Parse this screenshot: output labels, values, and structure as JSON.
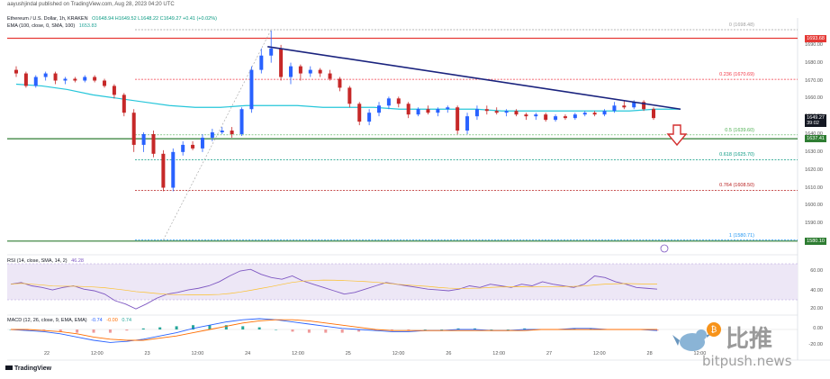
{
  "header": {
    "publisher": "aayushjindal published on TradingView.com, Aug 28, 2023 04:20 UTC"
  },
  "legend": {
    "symbol": "Ethereum / U.S. Dollar, 1h, KRAKEN",
    "ohlc": "O1648.94 H1649.52 L1648.22 C1649.27 +0.41 (+0.02%)",
    "ema_label": "EMA (100, close, 0, SMA, 100)",
    "ema_value": "1653.83"
  },
  "fib_levels": [
    {
      "ratio": "0",
      "price": 1698.48,
      "label": "0 (1698.48)",
      "color": "#9e9e9e"
    },
    {
      "ratio": "0.236",
      "price": 1670.69,
      "label": "0.236 (1670.69)",
      "color": "#f23645"
    },
    {
      "ratio": "0.5",
      "price": 1639.6,
      "label": "0.5 (1639.60)",
      "color": "#4caf50"
    },
    {
      "ratio": "0.618",
      "price": 1625.7,
      "label": "0.618 (1625.70)",
      "color": "#089981"
    },
    {
      "ratio": "0.764",
      "price": 1608.5,
      "label": "0.764 (1608.50)",
      "color": "#b71c1c"
    },
    {
      "ratio": "1",
      "price": 1580.71,
      "label": "1 (1580.71)",
      "color": "#2196f3"
    }
  ],
  "price_tags": [
    {
      "label": "1693.68",
      "price": 1693.68,
      "color": "#e53935"
    },
    {
      "label": "1649.27",
      "price": 1649.27,
      "color": "#131722"
    },
    {
      "label": "1637.41",
      "price": 1637.41,
      "color": "#2e7d32"
    },
    {
      "label": "1580.10",
      "price": 1580.1,
      "color": "#2e7d32"
    }
  ],
  "price_tag_sub": "39:02",
  "price_axis": [
    "1690.00",
    "1680.00",
    "1670.00",
    "1660.00",
    "1650.00",
    "1640.00",
    "1630.00",
    "1620.00",
    "1610.00",
    "1600.00",
    "1590.00"
  ],
  "time_axis": [
    "22",
    "12:00",
    "23",
    "12:00",
    "24",
    "12:00",
    "25",
    "12:00",
    "26",
    "12:00",
    "27",
    "12:00",
    "28",
    "12:00"
  ],
  "rsi": {
    "label": "RSI (14, close, SMA, 14, 2)",
    "value": "46.28",
    "axis": [
      "60.00",
      "40.00"
    ]
  },
  "macd": {
    "label": "MACD (12, 26, close, 9, EMA, EMA)",
    "v1": "-0.74",
    "v2": "-0.00",
    "v3": "0.74",
    "axis": [
      "20.00",
      "0.00",
      "-20.00"
    ]
  },
  "footer": {
    "brand": "TradingView"
  },
  "watermark": {
    "cn": "比推",
    "en": "bitpush.news"
  },
  "chart_data": {
    "type": "candlestick",
    "ylim": [
      1580,
      1700
    ],
    "candles": [
      [
        1676,
        1678,
        1672,
        1674
      ],
      [
        1674,
        1675,
        1666,
        1667
      ],
      [
        1667,
        1673,
        1666,
        1672
      ],
      [
        1672,
        1675,
        1670,
        1674
      ],
      [
        1674,
        1675,
        1668,
        1670
      ],
      [
        1670,
        1672,
        1668,
        1671
      ],
      [
        1671,
        1672,
        1669,
        1670
      ],
      [
        1670,
        1673,
        1669,
        1672
      ],
      [
        1672,
        1673,
        1669,
        1670
      ],
      [
        1670,
        1671,
        1666,
        1667
      ],
      [
        1667,
        1668,
        1660,
        1662
      ],
      [
        1662,
        1663,
        1650,
        1652
      ],
      [
        1652,
        1654,
        1630,
        1634
      ],
      [
        1634,
        1641,
        1630,
        1640
      ],
      [
        1640,
        1642,
        1627,
        1629
      ],
      [
        1629,
        1631,
        1608,
        1610
      ],
      [
        1610,
        1632,
        1608,
        1630
      ],
      [
        1630,
        1636,
        1628,
        1634
      ],
      [
        1634,
        1636,
        1631,
        1632
      ],
      [
        1632,
        1640,
        1630,
        1638
      ],
      [
        1638,
        1643,
        1636,
        1641
      ],
      [
        1641,
        1644,
        1640,
        1642
      ],
      [
        1642,
        1644,
        1638,
        1640
      ],
      [
        1640,
        1655,
        1639,
        1654
      ],
      [
        1654,
        1678,
        1652,
        1676
      ],
      [
        1676,
        1688,
        1674,
        1684
      ],
      [
        1684,
        1698,
        1680,
        1688
      ],
      [
        1688,
        1690,
        1670,
        1672
      ],
      [
        1672,
        1680,
        1668,
        1678
      ],
      [
        1678,
        1679,
        1670,
        1674
      ],
      [
        1674,
        1678,
        1672,
        1676
      ],
      [
        1676,
        1677,
        1672,
        1674
      ],
      [
        1674,
        1676,
        1670,
        1671
      ],
      [
        1671,
        1672,
        1664,
        1666
      ],
      [
        1666,
        1667,
        1655,
        1657
      ],
      [
        1657,
        1658,
        1645,
        1647
      ],
      [
        1647,
        1654,
        1645,
        1652
      ],
      [
        1652,
        1658,
        1650,
        1656
      ],
      [
        1656,
        1661,
        1654,
        1660
      ],
      [
        1660,
        1661,
        1655,
        1657
      ],
      [
        1657,
        1658,
        1649,
        1651
      ],
      [
        1651,
        1655,
        1650,
        1654
      ],
      [
        1654,
        1656,
        1651,
        1652
      ],
      [
        1652,
        1655,
        1650,
        1654
      ],
      [
        1654,
        1656,
        1652,
        1655
      ],
      [
        1655,
        1656,
        1640,
        1642
      ],
      [
        1642,
        1652,
        1640,
        1650
      ],
      [
        1650,
        1656,
        1648,
        1654
      ],
      [
        1654,
        1656,
        1651,
        1653
      ],
      [
        1653,
        1655,
        1651,
        1652
      ],
      [
        1652,
        1654,
        1650,
        1653
      ],
      [
        1653,
        1654,
        1650,
        1651
      ],
      [
        1651,
        1652,
        1648,
        1650
      ],
      [
        1650,
        1652,
        1648,
        1651
      ],
      [
        1651,
        1652,
        1647,
        1648
      ],
      [
        1648,
        1651,
        1647,
        1650
      ],
      [
        1650,
        1651,
        1648,
        1649
      ],
      [
        1649,
        1652,
        1648,
        1651
      ],
      [
        1651,
        1653,
        1650,
        1652
      ],
      [
        1652,
        1653,
        1650,
        1651
      ],
      [
        1651,
        1654,
        1650,
        1653
      ],
      [
        1653,
        1658,
        1652,
        1656
      ],
      [
        1656,
        1659,
        1654,
        1655
      ],
      [
        1655,
        1659,
        1654,
        1658
      ],
      [
        1658,
        1659,
        1653,
        1654
      ],
      [
        1654,
        1655,
        1648,
        1649
      ]
    ],
    "ema": [
      1668,
      1667,
      1665,
      1662,
      1660,
      1658,
      1656,
      1655,
      1655,
      1656,
      1656,
      1656,
      1655,
      1655,
      1655,
      1654,
      1654,
      1654,
      1654,
      1653,
      1653,
      1653,
      1653,
      1653,
      1653,
      1654,
      1654
    ],
    "trendline": [
      [
        26,
        1689
      ],
      [
        71,
        1654
      ]
    ],
    "support_lines": [
      1637.41,
      1580.1
    ],
    "resistance_line": 1693.68,
    "arrow": "down",
    "rsi_values": [
      52,
      54,
      50,
      48,
      45,
      48,
      50,
      46,
      44,
      40,
      32,
      28,
      22,
      28,
      35,
      40,
      42,
      45,
      47,
      50,
      55,
      62,
      68,
      70,
      64,
      60,
      58,
      62,
      56,
      52,
      48,
      44,
      40,
      42,
      46,
      50,
      54,
      52,
      50,
      48,
      46,
      45,
      44,
      46,
      50,
      48,
      52,
      50,
      48,
      52,
      50,
      55,
      52,
      50,
      48,
      52,
      62,
      60,
      55,
      52,
      48,
      47,
      46
    ],
    "macd_values": [
      0,
      -1,
      -2,
      -4,
      -7,
      -10,
      -12,
      -11,
      -9,
      -6,
      -3,
      1,
      4,
      7,
      9,
      10,
      9,
      7,
      5,
      3,
      1,
      0,
      -1,
      -2,
      -2,
      -1,
      -1,
      0,
      0,
      -1,
      -1,
      0,
      0,
      0,
      1,
      1,
      0,
      0,
      0,
      -1
    ],
    "signal_values": [
      0,
      0,
      -1,
      -2,
      -4,
      -7,
      -9,
      -10,
      -10,
      -8,
      -6,
      -3,
      0,
      3,
      6,
      8,
      9,
      9,
      8,
      6,
      4,
      2,
      0,
      -1,
      -1,
      -1,
      -1,
      -1,
      -1,
      -1,
      -1,
      -1,
      0,
      0,
      0,
      0,
      0,
      0,
      0,
      0
    ]
  }
}
